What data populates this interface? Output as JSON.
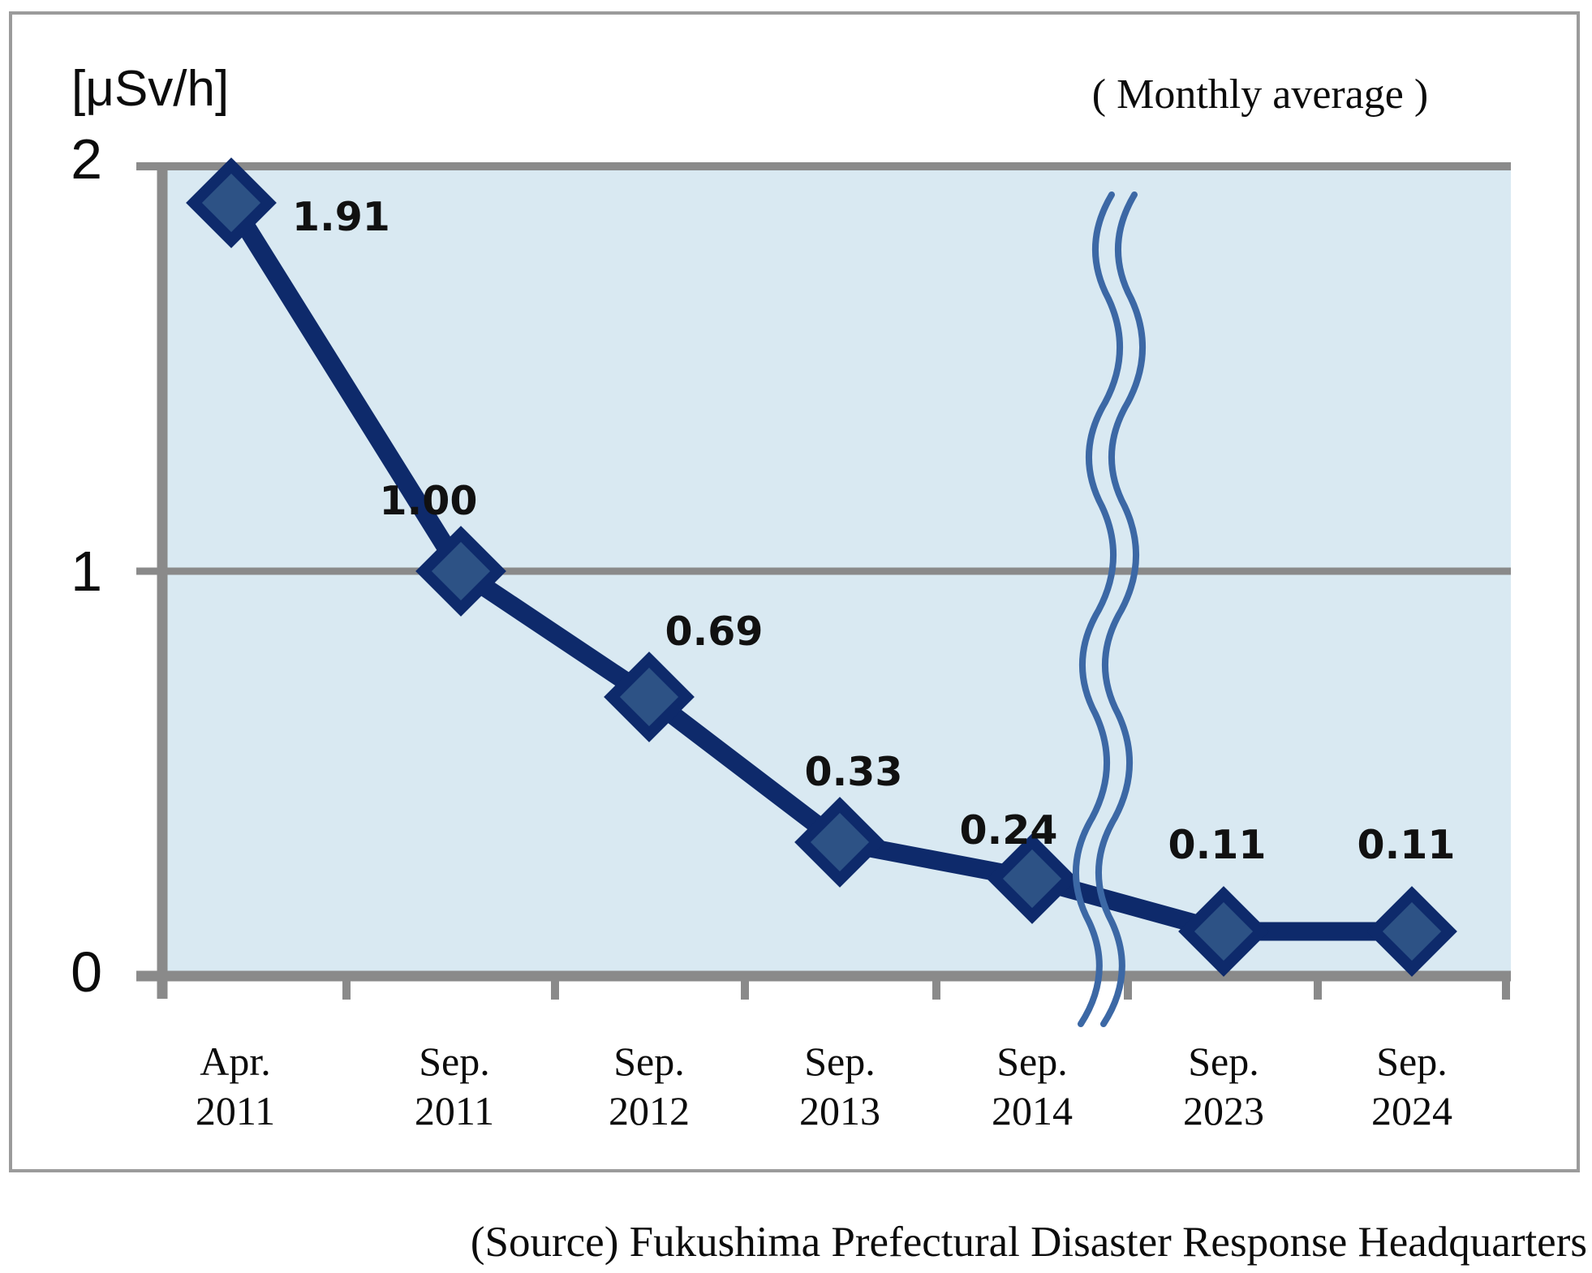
{
  "figure": {
    "unit_label": "[μSv/h]",
    "note": "( Monthly average )",
    "source": "(Source) Fukushima Prefectural Disaster Response Headquarters"
  },
  "chart_data": {
    "type": "line",
    "unit": "μSv/h",
    "note": "( Monthly average )",
    "categories": [
      "Apr. 2011",
      "Sep. 2011",
      "Sep. 2012",
      "Sep. 2013",
      "Sep. 2014",
      "Sep. 2023",
      "Sep. 2024"
    ],
    "values": [
      1.91,
      1.0,
      0.69,
      0.33,
      0.24,
      0.11,
      0.11
    ],
    "value_labels": [
      "1.91",
      "1.00",
      "0.69",
      "0.33",
      "0.24",
      "0.11",
      "0.11"
    ],
    "x_tick_labels": [
      [
        "Apr.",
        "2011"
      ],
      [
        "Sep.",
        "2011"
      ],
      [
        "Sep.",
        "2012"
      ],
      [
        "Sep.",
        "2013"
      ],
      [
        "Sep.",
        "2014"
      ],
      [
        "Sep.",
        "2023"
      ],
      [
        "Sep.",
        "2024"
      ]
    ],
    "yticks": [
      "2",
      "1",
      "0"
    ],
    "ylim": [
      0,
      2
    ],
    "grid": true,
    "legend": false,
    "axis_break_between": [
      "Sep. 2014",
      "Sep. 2023"
    ],
    "colors": {
      "line": "#0e2a6b",
      "marker_fill": "#2d5285",
      "plot_bg": "#d9e9f2",
      "axis_gray": "#8a8a8a",
      "break_mark": "#3c68a5",
      "frame": "#9b9b9b"
    },
    "source": "(Source) Fukushima Prefectural Disaster Response Headquarters"
  }
}
